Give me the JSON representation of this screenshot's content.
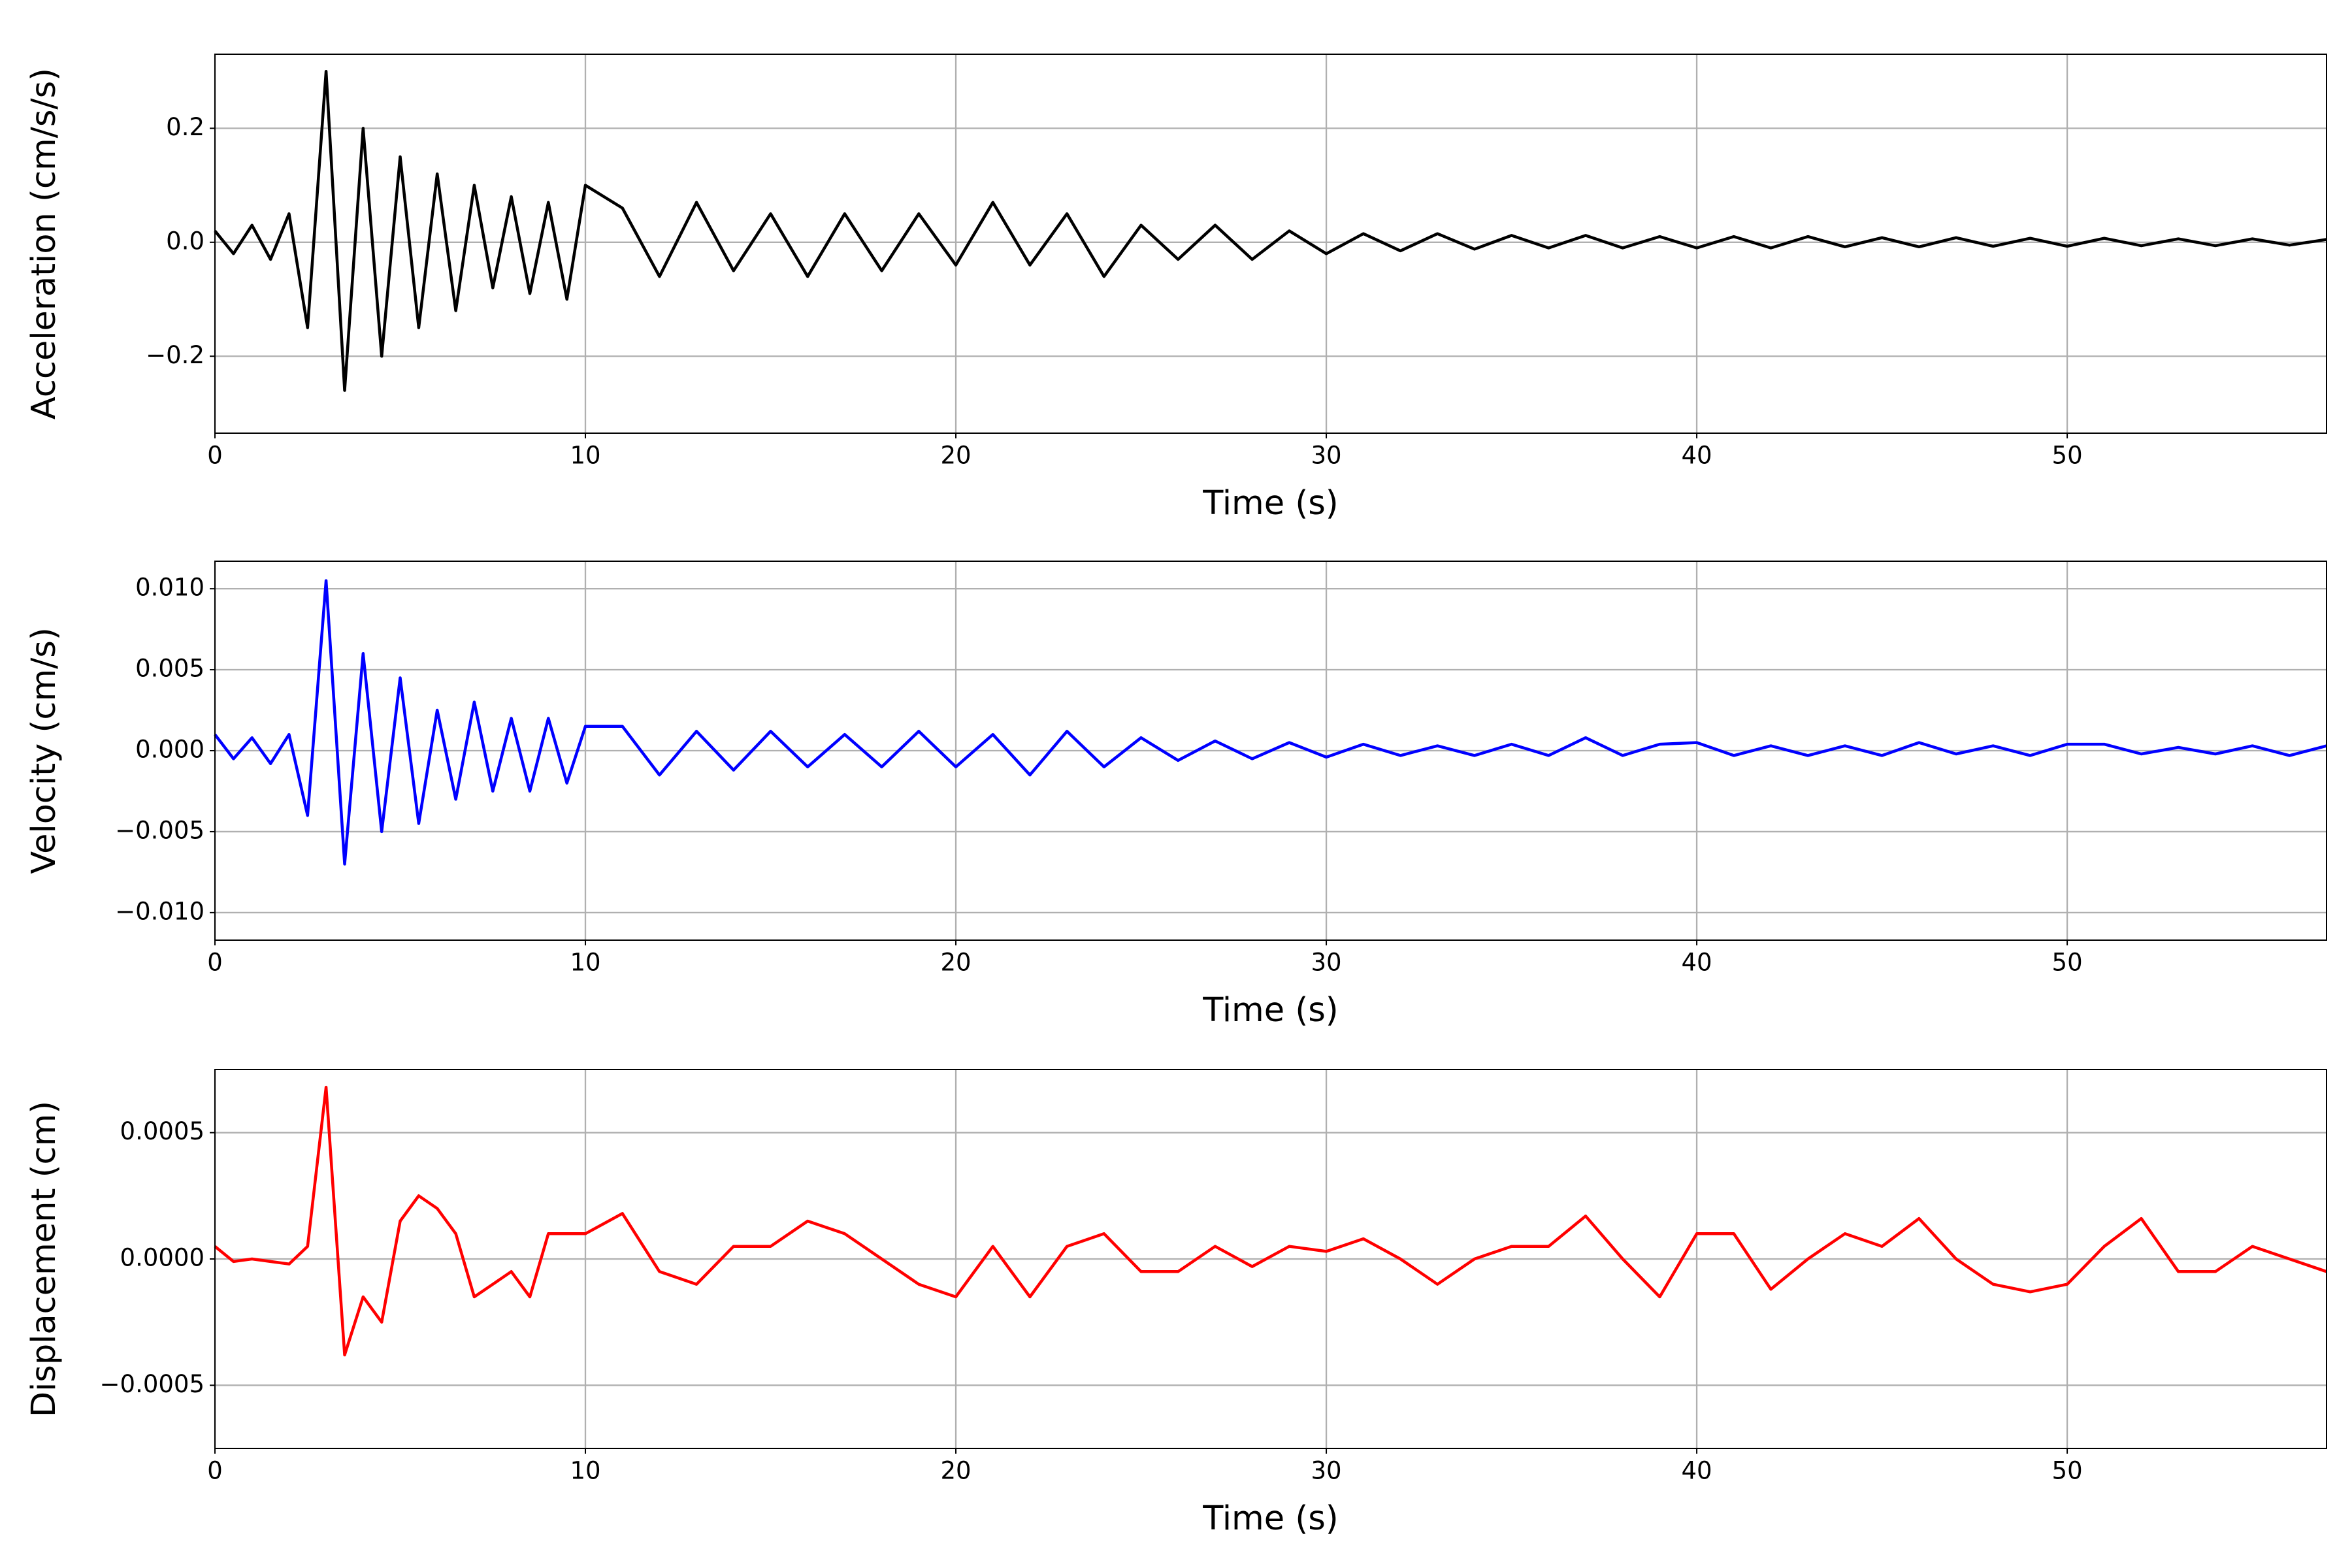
{
  "chart_data": [
    {
      "type": "line",
      "xlabel": "Time (s)",
      "ylabel": "Acceleration (cm/s/s)",
      "color": "#000000",
      "grid": true,
      "xlim": [
        0,
        57
      ],
      "xticks": [
        0,
        10,
        20,
        30,
        40,
        50
      ],
      "ylim": [
        -0.335,
        0.33
      ],
      "yticks": [
        {
          "value": -0.2,
          "label": "−0.2"
        },
        {
          "value": 0,
          "label": "0.0"
        },
        {
          "value": 0.2,
          "label": "0.2"
        }
      ],
      "x": [
        0,
        0.5,
        1,
        1.5,
        2,
        2.5,
        3,
        3.5,
        4,
        4.5,
        5,
        5.5,
        6,
        6.5,
        7,
        7.5,
        8,
        8.5,
        9,
        9.5,
        10,
        11,
        12,
        13,
        14,
        15,
        16,
        17,
        18,
        19,
        20,
        21,
        22,
        23,
        24,
        25,
        26,
        27,
        28,
        29,
        30,
        31,
        32,
        33,
        34,
        35,
        36,
        37,
        38,
        39,
        40,
        41,
        42,
        43,
        44,
        45,
        46,
        47,
        48,
        49,
        50,
        51,
        52,
        53,
        54,
        55,
        56,
        57
      ],
      "values": [
        0.02,
        -0.02,
        0.03,
        -0.03,
        0.05,
        -0.15,
        0.3,
        -0.26,
        0.2,
        -0.2,
        0.15,
        -0.15,
        0.12,
        -0.12,
        0.1,
        -0.08,
        0.08,
        -0.09,
        0.07,
        -0.1,
        0.1,
        0.06,
        -0.06,
        0.07,
        -0.05,
        0.05,
        -0.06,
        0.05,
        -0.05,
        0.05,
        -0.04,
        0.07,
        -0.04,
        0.05,
        -0.06,
        0.03,
        -0.03,
        0.03,
        -0.03,
        0.02,
        -0.02,
        0.015,
        -0.015,
        0.015,
        -0.012,
        0.012,
        -0.01,
        0.012,
        -0.01,
        0.01,
        -0.01,
        0.01,
        -0.01,
        0.01,
        -0.008,
        0.008,
        -0.008,
        0.008,
        -0.007,
        0.007,
        -0.007,
        0.007,
        -0.006,
        0.006,
        -0.006,
        0.006,
        -0.005,
        0.005
      ]
    },
    {
      "type": "line",
      "xlabel": "Time (s)",
      "ylabel": "Velocity (cm/s)",
      "color": "#0000ff",
      "grid": true,
      "xlim": [
        0,
        57
      ],
      "xticks": [
        0,
        10,
        20,
        30,
        40,
        50
      ],
      "ylim": [
        -0.0117,
        0.0117
      ],
      "yticks": [
        {
          "value": -0.01,
          "label": "−0.010"
        },
        {
          "value": -0.005,
          "label": "−0.005"
        },
        {
          "value": 0,
          "label": "0.000"
        },
        {
          "value": 0.005,
          "label": "0.005"
        },
        {
          "value": 0.01,
          "label": "0.010"
        }
      ],
      "x": [
        0,
        0.5,
        1,
        1.5,
        2,
        2.5,
        3,
        3.5,
        4,
        4.5,
        5,
        5.5,
        6,
        6.5,
        7,
        7.5,
        8,
        8.5,
        9,
        9.5,
        10,
        11,
        12,
        13,
        14,
        15,
        16,
        17,
        18,
        19,
        20,
        21,
        22,
        23,
        24,
        25,
        26,
        27,
        28,
        29,
        30,
        31,
        32,
        33,
        34,
        35,
        36,
        37,
        38,
        39,
        40,
        41,
        42,
        43,
        44,
        45,
        46,
        47,
        48,
        49,
        50,
        51,
        52,
        53,
        54,
        55,
        56,
        57
      ],
      "values": [
        0.001,
        -0.0005,
        0.0008,
        -0.0008,
        0.001,
        -0.004,
        0.0105,
        -0.007,
        0.006,
        -0.005,
        0.0045,
        -0.0045,
        0.0025,
        -0.003,
        0.003,
        -0.0025,
        0.002,
        -0.0025,
        0.002,
        -0.002,
        0.0015,
        0.0015,
        -0.0015,
        0.0012,
        -0.0012,
        0.0012,
        -0.001,
        0.001,
        -0.001,
        0.0012,
        -0.001,
        0.001,
        -0.0015,
        0.0012,
        -0.001,
        0.0008,
        -0.0006,
        0.0006,
        -0.0005,
        0.0005,
        -0.0004,
        0.0004,
        -0.0003,
        0.0003,
        -0.0003,
        0.0004,
        -0.0003,
        0.0008,
        -0.0003,
        0.0004,
        0.0005,
        -0.0003,
        0.0003,
        -0.0003,
        0.0003,
        -0.0003,
        0.0005,
        -0.0002,
        0.0003,
        -0.0003,
        0.0004,
        0.0004,
        -0.0002,
        0.0002,
        -0.0002,
        0.0003,
        -0.0003,
        0.0003
      ]
    },
    {
      "type": "line",
      "xlabel": "Time (s)",
      "ylabel": "Displacement (cm)",
      "color": "#ff0000",
      "grid": true,
      "xlim": [
        0,
        57
      ],
      "xticks": [
        0,
        10,
        20,
        30,
        40,
        50
      ],
      "ylim": [
        -0.00075,
        0.00075
      ],
      "yticks": [
        {
          "value": -0.0005,
          "label": "−0.0005"
        },
        {
          "value": 0,
          "label": "0.0000"
        },
        {
          "value": 0.0005,
          "label": "0.0005"
        }
      ],
      "x": [
        0,
        0.5,
        1,
        1.5,
        2,
        2.5,
        3,
        3.5,
        4,
        4.5,
        5,
        5.5,
        6,
        6.5,
        7,
        7.5,
        8,
        8.5,
        9,
        9.5,
        10,
        11,
        12,
        13,
        14,
        15,
        16,
        17,
        18,
        19,
        20,
        21,
        22,
        23,
        24,
        25,
        26,
        27,
        28,
        29,
        30,
        31,
        32,
        33,
        34,
        35,
        36,
        37,
        38,
        39,
        40,
        41,
        42,
        43,
        44,
        45,
        46,
        47,
        48,
        49,
        50,
        51,
        52,
        53,
        54,
        55,
        56,
        57
      ],
      "values": [
        5e-05,
        -1e-05,
        0,
        -1e-05,
        -2e-05,
        5e-05,
        0.00068,
        -0.00038,
        -0.00015,
        -0.00025,
        0.00015,
        0.00025,
        0.0002,
        0.0001,
        -0.00015,
        -0.0001,
        -5e-05,
        -0.00015,
        0.0001,
        0.0001,
        0.0001,
        0.00018,
        -5e-05,
        -0.0001,
        5e-05,
        5e-05,
        0.00015,
        0.0001,
        0,
        -0.0001,
        -0.00015,
        5e-05,
        -0.00015,
        5e-05,
        0.0001,
        -5e-05,
        -5e-05,
        5e-05,
        -3e-05,
        5e-05,
        3e-05,
        8e-05,
        0,
        -0.0001,
        0,
        5e-05,
        5e-05,
        0.00017,
        0,
        -0.00015,
        0.0001,
        0.0001,
        -0.00012,
        0,
        0.0001,
        5e-05,
        0.00016,
        0,
        -0.0001,
        -0.00013,
        -0.0001,
        5e-05,
        0.00016,
        -5e-05,
        -5e-05,
        5e-05,
        0,
        -5e-05
      ]
    }
  ]
}
